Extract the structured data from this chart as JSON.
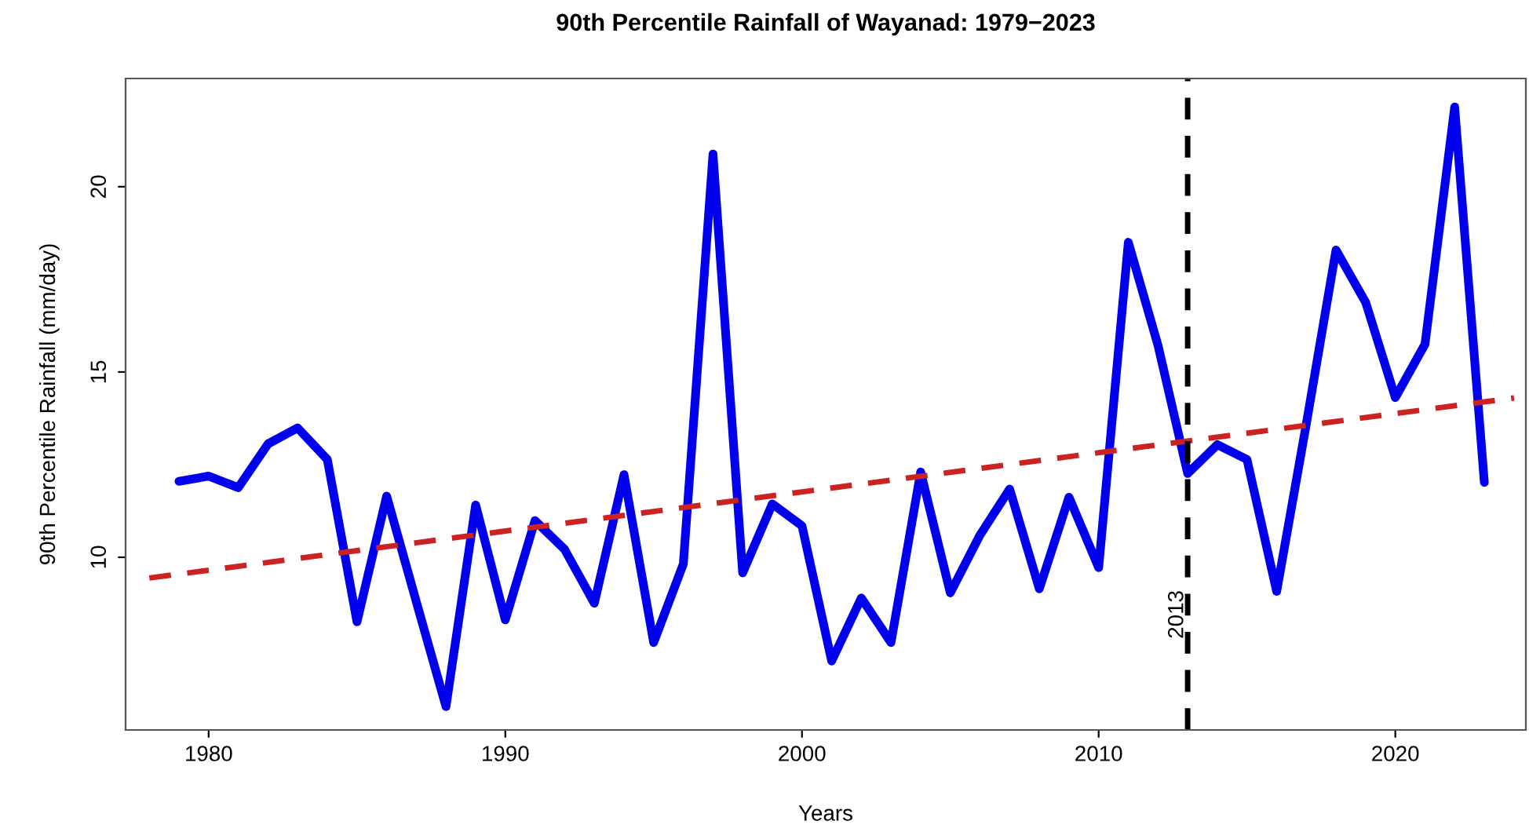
{
  "chart_data": {
    "type": "line",
    "title": "90th Percentile Rainfall of Wayanad: 1979−2023",
    "xlabel": "Years",
    "ylabel": "90th Percentile Rainfall (mm/day)",
    "xlim": [
      1977.2,
      2024.4
    ],
    "ylim": [
      5.34,
      22.92
    ],
    "xticks": [
      1980,
      1990,
      2000,
      2010,
      2020
    ],
    "yticks": [
      {
        "value": 10,
        "label": "10"
      },
      {
        "value": 15,
        "label": "15"
      },
      {
        "value": 20,
        "label": "20"
      }
    ],
    "grid": false,
    "legend": false,
    "series": [
      {
        "color": "#0000ee",
        "line_style": "solid",
        "x": [
          1979,
          1980,
          1981,
          1982,
          1983,
          1984,
          1985,
          1986,
          1987,
          1988,
          1989,
          1990,
          1991,
          1992,
          1993,
          1994,
          1995,
          1996,
          1997,
          1998,
          1999,
          2000,
          2001,
          2002,
          2003,
          2004,
          2005,
          2006,
          2007,
          2008,
          2009,
          2010,
          2011,
          2012,
          2013,
          2014,
          2015,
          2016,
          2017,
          2018,
          2019,
          2020,
          2021,
          2022,
          2023
        ],
        "values": [
          12.05,
          12.19,
          11.88,
          13.06,
          13.49,
          12.64,
          8.26,
          11.65,
          8.8,
          5.97,
          11.41,
          8.31,
          10.99,
          10.21,
          8.76,
          12.23,
          7.7,
          9.82,
          20.88,
          9.58,
          11.44,
          10.85,
          7.2,
          8.9,
          7.7,
          12.3,
          9.04,
          10.6,
          11.84,
          9.15,
          11.62,
          9.72,
          18.5,
          15.72,
          12.26,
          13.04,
          12.64,
          9.08,
          13.6,
          18.29,
          16.88,
          14.31,
          15.75,
          22.15,
          12.02
        ]
      },
      {
        "type": "line",
        "color": "#cc2222",
        "line_style": "dashed",
        "x": [
          1978,
          2024
        ],
        "values": [
          9.44,
          14.3
        ]
      }
    ],
    "ref_lines": [
      {
        "axis": "x",
        "value": 2013,
        "label": "2013",
        "color": "#000000",
        "line_style": "dashed"
      }
    ]
  }
}
